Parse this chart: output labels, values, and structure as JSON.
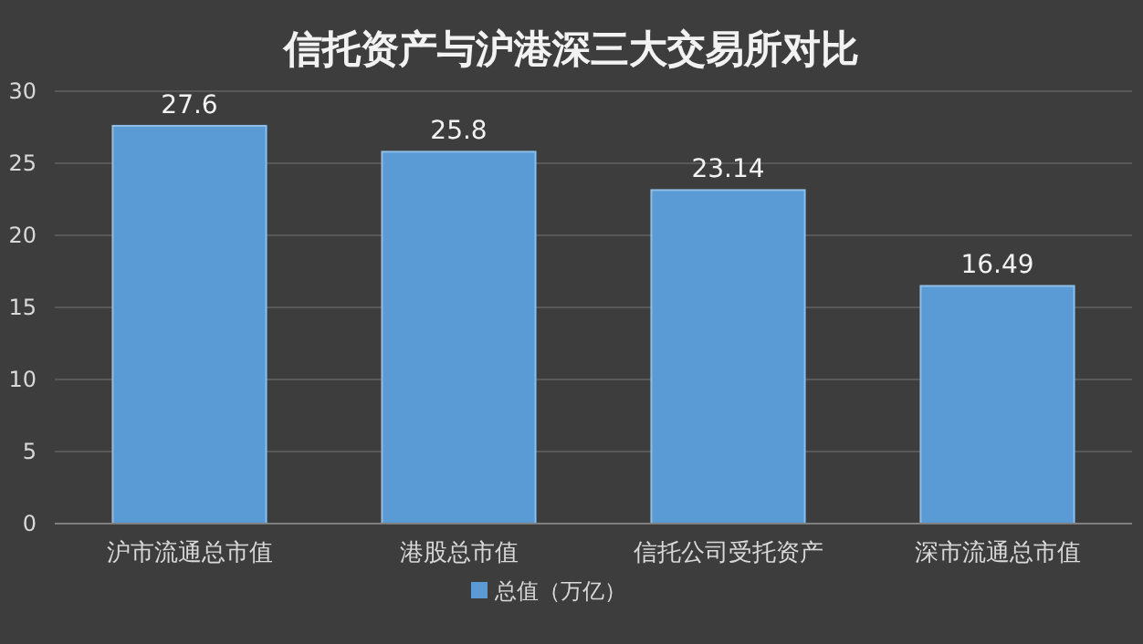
{
  "chart_data": {
    "type": "bar",
    "title": "信托资产与沪港深三大交易所对比",
    "categories": [
      "沪市流通总市值",
      "港股总市值",
      "信托公司受托资产",
      "深市流通总市值"
    ],
    "series": [
      {
        "name": "总值（万亿）",
        "color": "#5b9bd5",
        "values": [
          27.6,
          25.8,
          23.14,
          16.49
        ]
      }
    ],
    "ylim": [
      0,
      30
    ],
    "yticks": [
      0,
      5,
      10,
      15,
      20,
      25,
      30
    ],
    "grid": "y",
    "legend": "bottom",
    "data_labels": true
  }
}
